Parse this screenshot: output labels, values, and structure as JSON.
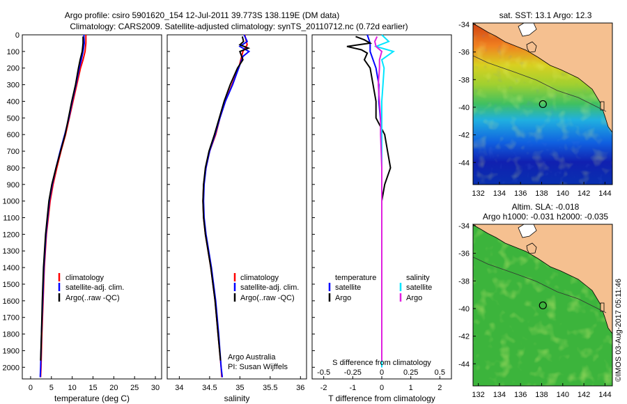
{
  "title": {
    "line1": "Argo profile: csiro 5901620_154 12-Jul-2011 39.773S 138.119E (DM data)",
    "line2": "Climatology: CARS2009. Satellite-adjusted climatology: synTS_20110712.nc (0.72d earlier)"
  },
  "colors": {
    "climatology": "#ff0000",
    "satellite": "#0000ff",
    "argo": "#000000",
    "sal_satellite": "#00e5ff",
    "sal_argo": "#e020e0",
    "land": "#f5c090"
  },
  "depth_axis": {
    "ticks": [
      0,
      100,
      200,
      300,
      400,
      500,
      600,
      700,
      800,
      900,
      1000,
      1100,
      1200,
      1300,
      1400,
      1500,
      1600,
      1700,
      1800,
      1900,
      2000
    ],
    "range": [
      0,
      2070
    ]
  },
  "chart_data": [
    {
      "type": "line",
      "xlabel": "temperature (deg C)",
      "ylim": [
        0,
        2070
      ],
      "xlim": [
        -2,
        31.5
      ],
      "xticks": [
        0,
        5,
        10,
        15,
        20,
        25,
        30
      ],
      "legend": [
        "climatology",
        "satellite-adj. clim.",
        "Argo(..raw -QC)"
      ],
      "legend_position": "lower-middle",
      "series": [
        {
          "name": "climatology",
          "depth": [
            0,
            50,
            100,
            150,
            200,
            300,
            400,
            500,
            600,
            700,
            800,
            900,
            1000,
            1200,
            1400,
            1600,
            1800,
            2000,
            2060
          ],
          "values": [
            13.3,
            13.3,
            13.1,
            12.6,
            12.0,
            11.1,
            10.2,
            9.3,
            8.4,
            7.3,
            6.3,
            5.4,
            4.7,
            3.8,
            3.3,
            3.0,
            2.7,
            2.5,
            2.4
          ]
        },
        {
          "name": "satellite-adj. clim.",
          "depth": [
            0,
            50,
            100,
            150,
            200,
            300,
            400,
            500,
            600,
            700,
            800,
            900,
            1000,
            1200,
            1400,
            1600,
            1800,
            2000,
            2060
          ],
          "values": [
            12.8,
            12.9,
            12.6,
            12.2,
            11.7,
            10.9,
            10.0,
            9.2,
            8.2,
            7.1,
            6.1,
            5.2,
            4.5,
            3.7,
            3.2,
            2.9,
            2.6,
            2.4,
            2.3
          ]
        },
        {
          "name": "Argo(..raw -QC)",
          "depth": [
            10,
            50,
            100,
            150,
            200,
            300,
            400,
            500,
            600,
            700,
            800,
            900,
            1000,
            1200,
            1400,
            1600,
            1800,
            1960
          ],
          "values": [
            12.6,
            12.6,
            12.4,
            11.9,
            11.5,
            10.8,
            9.9,
            9.1,
            8.3,
            7.2,
            6.1,
            5.1,
            4.4,
            3.6,
            3.1,
            2.8,
            2.6,
            2.4
          ]
        }
      ]
    },
    {
      "type": "line",
      "xlabel": "salinity",
      "ylim": [
        0,
        2070
      ],
      "xlim": [
        33.8,
        36.1
      ],
      "xticks": [
        34,
        34.5,
        35,
        35.5,
        36
      ],
      "legend": [
        "climatology",
        "satellite-adj. clim.",
        "Argo(..raw -QC)"
      ],
      "legend_position": "lower-right",
      "annotation": [
        "Argo Australia",
        "PI: Susan Wijffels"
      ],
      "series": [
        {
          "name": "climatology",
          "depth": [
            0,
            60,
            100,
            200,
            300,
            400,
            500,
            600,
            700,
            800,
            900,
            1000,
            1100,
            1200,
            1400,
            1600,
            1800,
            2000,
            2060
          ],
          "values": [
            35.08,
            35.12,
            35.05,
            34.98,
            34.87,
            34.76,
            34.67,
            34.6,
            34.5,
            34.44,
            34.4,
            34.39,
            34.4,
            34.43,
            34.52,
            34.59,
            34.64,
            34.69,
            34.7
          ]
        },
        {
          "name": "satellite-adj. clim.",
          "depth": [
            0,
            40,
            70,
            100,
            130,
            200,
            300,
            400,
            500,
            600,
            700,
            800,
            900,
            1000,
            1100,
            1200,
            1400,
            1600,
            1800,
            2000,
            2060
          ],
          "values": [
            35.07,
            35.12,
            35.0,
            35.15,
            35.05,
            34.98,
            34.88,
            34.76,
            34.67,
            34.59,
            34.5,
            34.44,
            34.41,
            34.4,
            34.41,
            34.44,
            34.53,
            34.6,
            34.65,
            34.69,
            34.71
          ]
        },
        {
          "name": "Argo(..raw -QC)",
          "depth": [
            10,
            40,
            60,
            80,
            100,
            150,
            200,
            300,
            400,
            500,
            600,
            700,
            800,
            900,
            1000,
            1100,
            1200,
            1400,
            1600,
            1800,
            1960
          ],
          "values": [
            35.04,
            35.06,
            35.0,
            35.14,
            35.0,
            35.05,
            34.96,
            34.84,
            34.74,
            34.66,
            34.58,
            34.49,
            34.43,
            34.4,
            34.39,
            34.4,
            34.43,
            34.52,
            34.59,
            34.64,
            34.68
          ]
        }
      ]
    },
    {
      "type": "line",
      "xlabel": "T difference from climatology",
      "xlabel_top": "S difference from climatology",
      "ylim": [
        0,
        2070
      ],
      "xlim": [
        -2.4,
        2.4
      ],
      "xticks": [
        -2,
        -1,
        0,
        1,
        2
      ],
      "xticks_S": [
        "-0.5",
        "-0.25",
        "0",
        "0.25",
        "0.5"
      ],
      "legend_headers": [
        "temperature",
        "salinity"
      ],
      "legend": [
        "satellite",
        "Argo",
        "satellite",
        "Argo"
      ],
      "series": [
        {
          "name": "temperature satellite",
          "depth": [
            0,
            50,
            100,
            200,
            300,
            400,
            600,
            800,
            1000,
            1200,
            1600,
            2000
          ],
          "values": [
            -0.5,
            -0.4,
            -0.4,
            -0.2,
            -0.1,
            -0.1,
            0.0,
            0.0,
            0.0,
            0.0,
            0.0,
            0.0
          ]
        },
        {
          "name": "temperature Argo",
          "depth": [
            10,
            30,
            50,
            70,
            90,
            110,
            150,
            200,
            300,
            400,
            500,
            600,
            700,
            800,
            900,
            1000,
            1200,
            1400,
            1600,
            1800,
            1960
          ],
          "values": [
            -0.9,
            -0.6,
            -0.4,
            -1.2,
            -0.7,
            -0.5,
            -0.6,
            -0.4,
            -0.3,
            -0.2,
            -0.2,
            0.1,
            0.2,
            0.3,
            0.1,
            0.0,
            0.0,
            0.0,
            0.0,
            0.0,
            0.0
          ]
        },
        {
          "name": "salinity satellite",
          "depth": [
            0,
            40,
            70,
            100,
            150,
            200,
            300,
            400,
            600,
            800,
            1000,
            1400,
            2000
          ],
          "values": [
            0.0,
            0.06,
            -0.05,
            0.1,
            0.0,
            0.02,
            0.01,
            0.0,
            0.0,
            0.0,
            0.0,
            0.0,
            0.0
          ]
        },
        {
          "name": "salinity Argo",
          "depth": [
            10,
            40,
            70,
            100,
            150,
            200,
            300,
            400,
            500,
            600,
            800,
            1000,
            1400,
            1960
          ],
          "values": [
            -0.04,
            -0.06,
            -0.05,
            0.0,
            -0.02,
            -0.02,
            -0.03,
            -0.02,
            -0.01,
            -0.01,
            0.0,
            0.0,
            0.0,
            0.0
          ]
        }
      ]
    },
    {
      "type": "heatmap",
      "title": "sat. SST: 13.1  Argo: 12.3",
      "xlim": [
        131.5,
        144.7
      ],
      "ylim": [
        -45.6,
        -33.9
      ],
      "xticks": [
        132,
        134,
        136,
        138,
        140,
        142,
        144
      ],
      "yticks": [
        -34,
        -36,
        -38,
        -40,
        -42,
        -44
      ],
      "marker": {
        "lon": 138.119,
        "lat": -39.773
      }
    },
    {
      "type": "heatmap",
      "title_line1": "Altim. SLA: -0.018",
      "title_line2": "Argo h1000: -0.031 h2000: -0.035",
      "xlim": [
        131.5,
        144.7
      ],
      "ylim": [
        -45.6,
        -33.9
      ],
      "xticks": [
        132,
        134,
        136,
        138,
        140,
        142,
        144
      ],
      "yticks": [
        -34,
        -36,
        -38,
        -40,
        -42,
        -44
      ],
      "marker": {
        "lon": 138.119,
        "lat": -39.773
      }
    }
  ],
  "credit": "©IMOS 03-Aug-2017 05:11:46"
}
